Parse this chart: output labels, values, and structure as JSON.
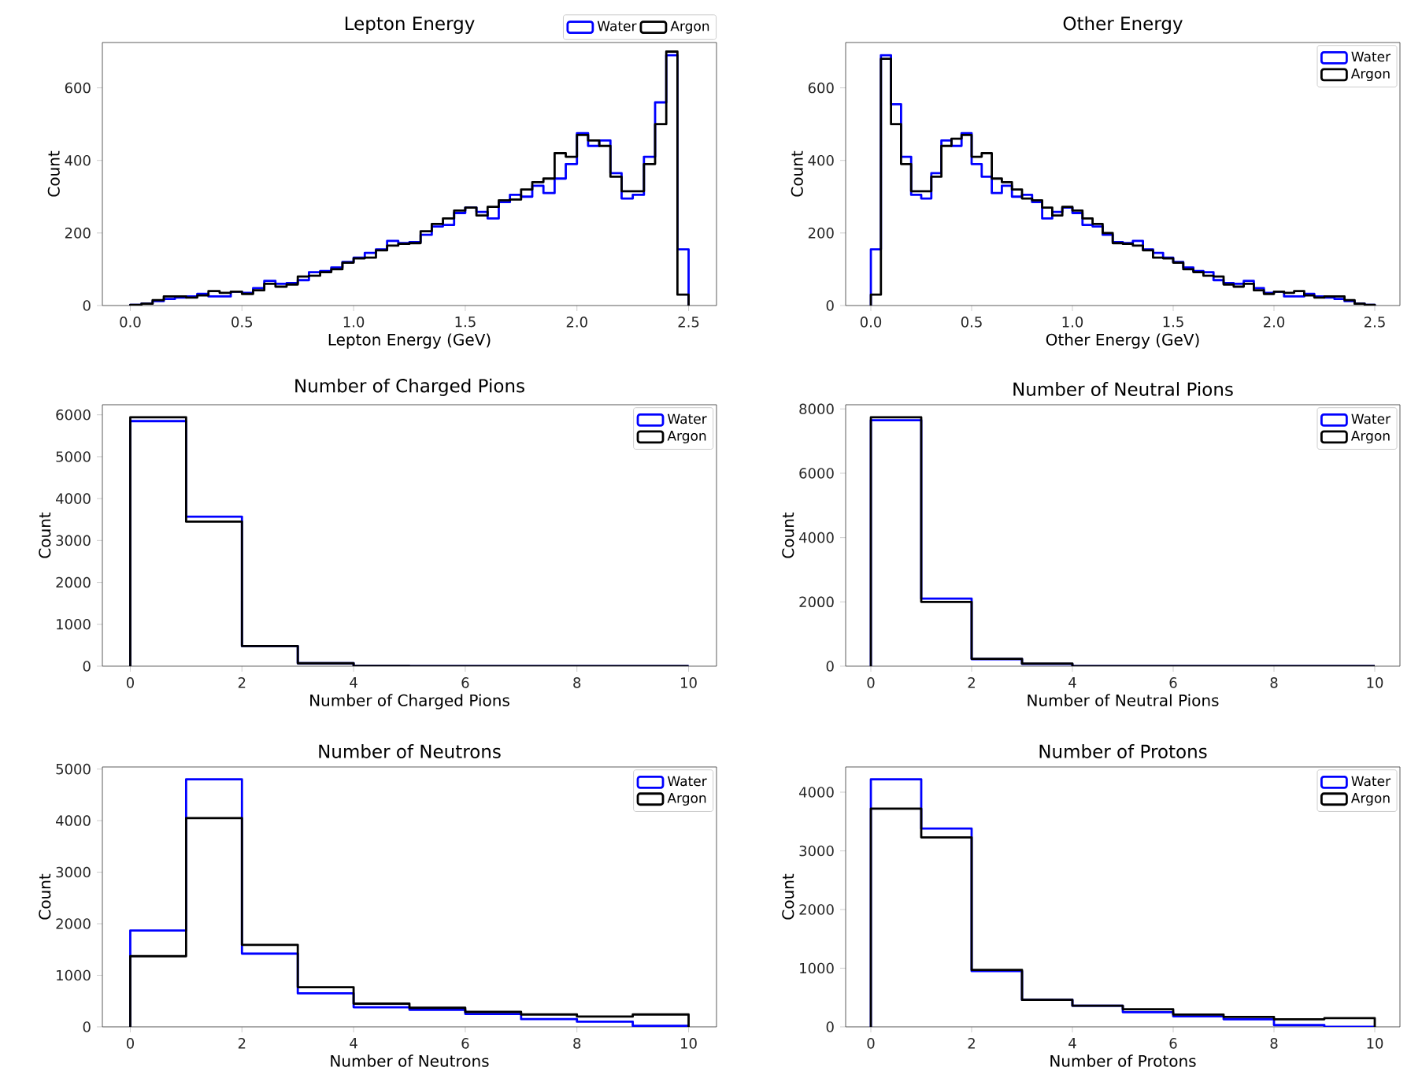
{
  "chart_data": [
    {
      "type": "histogram",
      "title": "Lepton Energy",
      "xlabel": "Lepton Energy (GeV)",
      "ylabel": "Count",
      "legend": "top right",
      "bins": [
        0,
        0.05,
        0.1,
        0.15,
        0.2,
        0.25,
        0.3,
        0.35,
        0.4,
        0.45,
        0.5,
        0.55,
        0.6,
        0.65,
        0.7,
        0.75,
        0.8,
        0.85,
        0.9,
        0.95,
        1.0,
        1.05,
        1.1,
        1.15,
        1.2,
        1.25,
        1.3,
        1.35,
        1.4,
        1.45,
        1.5,
        1.55,
        1.6,
        1.65,
        1.7,
        1.75,
        1.8,
        1.85,
        1.9,
        1.95,
        2.0,
        2.05,
        2.1,
        2.15,
        2.2,
        2.25,
        2.3,
        2.35,
        2.4,
        2.45,
        2.5
      ],
      "series": [
        {
          "name": "Water",
          "color": "#0000ff",
          "values": [
            2,
            5,
            12,
            18,
            22,
            25,
            32,
            25,
            25,
            38,
            35,
            48,
            68,
            60,
            62,
            70,
            92,
            95,
            105,
            120,
            132,
            145,
            155,
            178,
            172,
            175,
            195,
            218,
            222,
            255,
            270,
            258,
            240,
            285,
            305,
            300,
            330,
            310,
            350,
            390,
            475,
            440,
            455,
            365,
            295,
            305,
            410,
            560,
            690,
            155
          ]
        },
        {
          "name": "Argon",
          "color": "#000000",
          "values": [
            2,
            5,
            15,
            25,
            25,
            22,
            28,
            40,
            35,
            38,
            32,
            42,
            60,
            52,
            58,
            80,
            82,
            92,
            100,
            118,
            130,
            132,
            152,
            165,
            170,
            172,
            205,
            225,
            240,
            262,
            270,
            248,
            272,
            290,
            292,
            320,
            340,
            350,
            420,
            410,
            470,
            455,
            440,
            355,
            315,
            315,
            390,
            500,
            700,
            30
          ]
        }
      ],
      "xlim": [
        -0.125,
        2.625
      ],
      "ylim": [
        0,
        725
      ],
      "xticks": [
        {
          "value": 0,
          "label": "0.0"
        },
        0.5,
        {
          "value": 1,
          "label": "1.0"
        },
        1.5,
        {
          "value": 2,
          "label": "2.0"
        },
        2.5
      ],
      "yticks": [
        0,
        200,
        400,
        600
      ]
    },
    {
      "type": "histogram",
      "title": "Other Energy",
      "xlabel": "Other Energy (GeV)",
      "ylabel": "Count",
      "legend": "top right",
      "bins": [
        0,
        0.05,
        0.1,
        0.15,
        0.2,
        0.25,
        0.3,
        0.35,
        0.4,
        0.45,
        0.5,
        0.55,
        0.6,
        0.65,
        0.7,
        0.75,
        0.8,
        0.85,
        0.9,
        0.95,
        1.0,
        1.05,
        1.1,
        1.15,
        1.2,
        1.25,
        1.3,
        1.35,
        1.4,
        1.45,
        1.5,
        1.55,
        1.6,
        1.65,
        1.7,
        1.75,
        1.8,
        1.85,
        1.9,
        1.95,
        2.0,
        2.05,
        2.1,
        2.15,
        2.2,
        2.25,
        2.3,
        2.35,
        2.4,
        2.45,
        2.5
      ],
      "series": [
        {
          "name": "Water",
          "color": "#0000ff",
          "values": [
            155,
            690,
            555,
            410,
            305,
            295,
            365,
            455,
            440,
            475,
            390,
            355,
            310,
            330,
            300,
            305,
            285,
            240,
            258,
            270,
            255,
            222,
            218,
            195,
            175,
            172,
            178,
            155,
            145,
            132,
            120,
            105,
            95,
            92,
            70,
            62,
            60,
            68,
            48,
            35,
            38,
            25,
            25,
            32,
            25,
            22,
            18,
            12,
            5,
            2
          ]
        },
        {
          "name": "Argon",
          "color": "#000000",
          "values": [
            30,
            680,
            500,
            390,
            315,
            315,
            355,
            440,
            460,
            470,
            410,
            420,
            350,
            340,
            320,
            295,
            290,
            270,
            248,
            272,
            262,
            240,
            225,
            200,
            172,
            170,
            165,
            152,
            132,
            130,
            118,
            100,
            92,
            82,
            80,
            58,
            52,
            60,
            42,
            32,
            38,
            35,
            40,
            28,
            22,
            25,
            25,
            15,
            5,
            2
          ]
        }
      ],
      "xlim": [
        -0.125,
        2.625
      ],
      "ylim": [
        0,
        725
      ],
      "xticks": [
        {
          "value": 0,
          "label": "0.0"
        },
        0.5,
        {
          "value": 1,
          "label": "1.0"
        },
        1.5,
        {
          "value": 2,
          "label": "2.0"
        },
        2.5
      ],
      "yticks": [
        0,
        200,
        400,
        600
      ]
    },
    {
      "type": "histogram",
      "title": "Number of Charged Pions",
      "xlabel": "Number of Charged Pions",
      "ylabel": "Count",
      "legend": "top right",
      "bins": [
        0,
        1,
        2,
        3,
        4,
        5,
        6,
        7,
        8,
        9,
        10
      ],
      "series": [
        {
          "name": "Water",
          "color": "#0000ff",
          "values": [
            5850,
            3570,
            480,
            70,
            5,
            0,
            0,
            0,
            0,
            0
          ]
        },
        {
          "name": "Argon",
          "color": "#000000",
          "values": [
            5940,
            3450,
            480,
            70,
            5,
            0,
            0,
            0,
            0,
            0
          ]
        }
      ],
      "xlim": [
        -0.5,
        10.5
      ],
      "ylim": [
        0,
        6240
      ],
      "xticks": [
        0,
        2,
        4,
        6,
        8,
        10
      ],
      "yticks": [
        0,
        1000,
        2000,
        3000,
        4000,
        5000,
        6000
      ]
    },
    {
      "type": "histogram",
      "title": "Number of Neutral Pions",
      "xlabel": "Number of Neutral Pions",
      "ylabel": "Count",
      "legend": "top right",
      "bins": [
        0,
        1,
        2,
        3,
        4,
        5,
        6,
        7,
        8,
        9,
        10
      ],
      "series": [
        {
          "name": "Water",
          "color": "#0000ff",
          "values": [
            7650,
            2100,
            220,
            70,
            0,
            0,
            0,
            0,
            0,
            0
          ]
        },
        {
          "name": "Argon",
          "color": "#000000",
          "values": [
            7740,
            2000,
            230,
            80,
            0,
            0,
            0,
            0,
            0,
            0
          ]
        }
      ],
      "xlim": [
        -0.5,
        10.5
      ],
      "ylim": [
        0,
        8130
      ],
      "xticks": [
        0,
        2,
        4,
        6,
        8,
        10
      ],
      "yticks": [
        0,
        2000,
        4000,
        6000,
        8000
      ]
    },
    {
      "type": "histogram",
      "title": "Number of Neutrons",
      "xlabel": "Number of Neutrons",
      "ylabel": "Count",
      "legend": "top right",
      "bins": [
        0,
        1,
        2,
        3,
        4,
        5,
        6,
        7,
        8,
        9,
        10
      ],
      "series": [
        {
          "name": "Water",
          "color": "#0000ff",
          "values": [
            1870,
            4800,
            1420,
            650,
            380,
            330,
            250,
            150,
            100,
            20
          ]
        },
        {
          "name": "Argon",
          "color": "#000000",
          "values": [
            1370,
            4050,
            1590,
            770,
            450,
            370,
            290,
            240,
            200,
            240
          ]
        }
      ],
      "xlim": [
        -0.5,
        10.5
      ],
      "ylim": [
        0,
        5040
      ],
      "xticks": [
        0,
        2,
        4,
        6,
        8,
        10
      ],
      "yticks": [
        0,
        1000,
        2000,
        3000,
        4000,
        5000
      ]
    },
    {
      "type": "histogram",
      "title": "Number of Protons",
      "xlabel": "Number of Protons",
      "ylabel": "Count",
      "legend": "top right",
      "bins": [
        0,
        1,
        2,
        3,
        4,
        5,
        6,
        7,
        8,
        9,
        10
      ],
      "series": [
        {
          "name": "Water",
          "color": "#0000ff",
          "values": [
            4220,
            3380,
            950,
            460,
            360,
            250,
            180,
            130,
            30,
            0
          ]
        },
        {
          "name": "Argon",
          "color": "#000000",
          "values": [
            3720,
            3230,
            970,
            460,
            360,
            300,
            210,
            170,
            130,
            150
          ]
        }
      ],
      "xlim": [
        -0.5,
        10.5
      ],
      "ylim": [
        0,
        4430
      ],
      "xticks": [
        0,
        2,
        4,
        6,
        8,
        10
      ],
      "yticks": [
        0,
        1000,
        2000,
        3000,
        4000
      ]
    }
  ]
}
